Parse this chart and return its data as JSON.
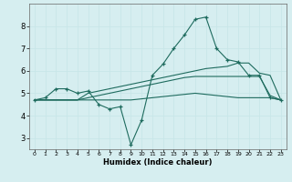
{
  "xlabel": "Humidex (Indice chaleur)",
  "background_color": "#d6eef0",
  "grid_color": "#b8dde0",
  "line_color": "#1e6b5e",
  "xlim": [
    -0.5,
    23.5
  ],
  "ylim": [
    2.5,
    9.0
  ],
  "xticks": [
    0,
    1,
    2,
    3,
    4,
    5,
    6,
    7,
    8,
    9,
    10,
    11,
    12,
    13,
    14,
    15,
    16,
    17,
    18,
    19,
    20,
    21,
    22,
    23
  ],
  "yticks": [
    3,
    4,
    5,
    6,
    7,
    8
  ],
  "series0": [
    4.7,
    4.8,
    5.2,
    5.2,
    5.0,
    5.1,
    4.5,
    4.3,
    4.4,
    2.7,
    3.8,
    5.8,
    6.3,
    7.0,
    7.6,
    8.3,
    8.4,
    7.0,
    6.5,
    6.4,
    5.8,
    5.8,
    4.8,
    4.7
  ],
  "series1": [
    4.7,
    4.7,
    4.7,
    4.7,
    4.7,
    4.7,
    4.7,
    4.7,
    4.7,
    4.7,
    4.75,
    4.8,
    4.85,
    4.9,
    4.95,
    5.0,
    4.95,
    4.9,
    4.85,
    4.8,
    4.8,
    4.8,
    4.8,
    4.7
  ],
  "series2": [
    4.7,
    4.7,
    4.7,
    4.7,
    4.7,
    4.8,
    4.9,
    5.0,
    5.1,
    5.2,
    5.3,
    5.4,
    5.5,
    5.6,
    5.7,
    5.75,
    5.75,
    5.75,
    5.75,
    5.75,
    5.75,
    5.75,
    4.9,
    4.7
  ],
  "series3": [
    4.7,
    4.7,
    4.7,
    4.7,
    4.7,
    5.0,
    5.1,
    5.2,
    5.3,
    5.4,
    5.5,
    5.6,
    5.7,
    5.8,
    5.9,
    6.0,
    6.1,
    6.15,
    6.2,
    6.35,
    6.35,
    5.9,
    5.8,
    4.7
  ]
}
